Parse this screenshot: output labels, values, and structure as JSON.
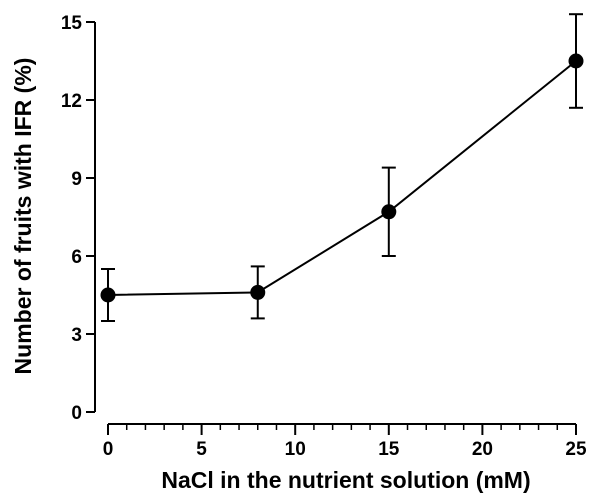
{
  "chart_data": {
    "type": "line",
    "title": "",
    "xlabel": "NaCl in the nutrient solution (mM)",
    "ylabel": "Number of fruits with IFR (%)",
    "xlim": [
      0,
      25
    ],
    "ylim": [
      0,
      15
    ],
    "x_ticks": [
      0,
      5,
      10,
      15,
      20,
      25
    ],
    "x_minor_tick_step": 1,
    "y_ticks": [
      0,
      3,
      6,
      9,
      12,
      15
    ],
    "grid": false,
    "legend": "none",
    "colors": {
      "line": "#000000",
      "marker": "#000000"
    },
    "series": [
      {
        "x": [
          0,
          8,
          15,
          25
        ],
        "y": [
          4.5,
          4.6,
          7.7,
          13.5
        ],
        "error": [
          1.0,
          1.0,
          1.7,
          1.8
        ]
      }
    ]
  }
}
